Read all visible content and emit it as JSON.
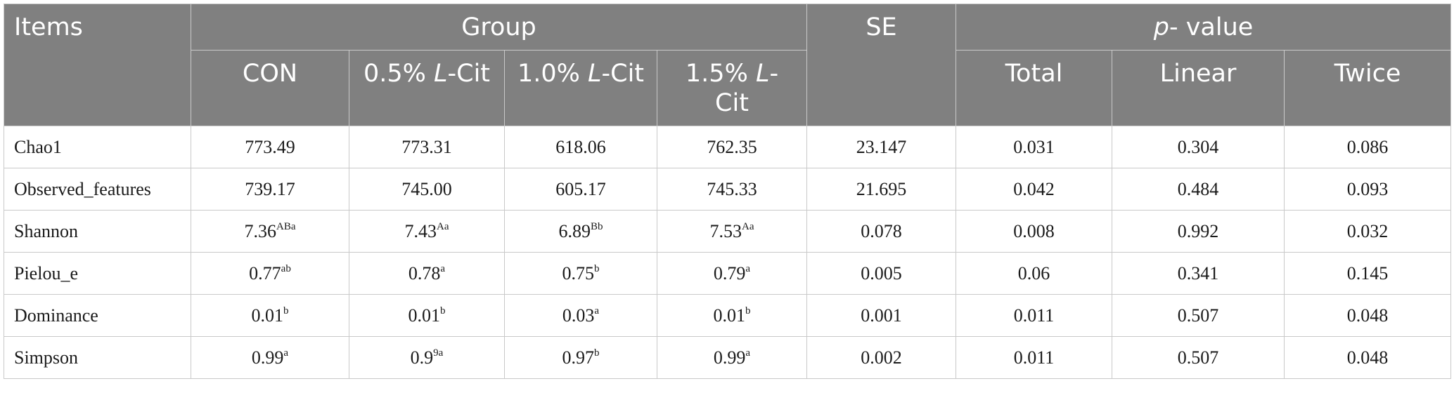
{
  "header": {
    "items": "Items",
    "group": "Group",
    "se": "SE",
    "p_italic": "p",
    "p_rest": "- value",
    "con": "CON",
    "g05_pre": "0.5% ",
    "g10_pre": "1.0% ",
    "g15_pre": "1.5% ",
    "l": "L",
    "cit": "-Cit",
    "total": "Total",
    "linear": "Linear",
    "twice": "Twice"
  },
  "rows": [
    {
      "label": "Chao1",
      "con": "773.49",
      "con_sup": "",
      "g05": "773.31",
      "g05_sup": "",
      "g10": "618.06",
      "g10_sup": "",
      "g15": "762.35",
      "g15_sup": "",
      "se": "23.147",
      "total": "0.031",
      "linear": "0.304",
      "twice": "0.086"
    },
    {
      "label": "Observed_features",
      "con": "739.17",
      "con_sup": "",
      "g05": "745.00",
      "g05_sup": "",
      "g10": "605.17",
      "g10_sup": "",
      "g15": "745.33",
      "g15_sup": "",
      "se": "21.695",
      "total": "0.042",
      "linear": "0.484",
      "twice": "0.093"
    },
    {
      "label": "Shannon",
      "con": "7.36",
      "con_sup": "ABa",
      "g05": "7.43",
      "g05_sup": "Aa",
      "g10": "6.89",
      "g10_sup": "Bb",
      "g15": "7.53",
      "g15_sup": "Aa",
      "se": "0.078",
      "total": "0.008",
      "linear": "0.992",
      "twice": "0.032"
    },
    {
      "label": "Pielou_e",
      "con": "0.77",
      "con_sup": "ab",
      "g05": "0.78",
      "g05_sup": "a",
      "g10": "0.75",
      "g10_sup": "b",
      "g15": "0.79",
      "g15_sup": "a",
      "se": "0.005",
      "total": "0.06",
      "linear": "0.341",
      "twice": "0.145"
    },
    {
      "label": "Dominance",
      "con": "0.01",
      "con_sup": "b",
      "g05": "0.01",
      "g05_sup": "b",
      "g10": "0.03",
      "g10_sup": "a",
      "g15": "0.01",
      "g15_sup": "b",
      "se": "0.001",
      "total": "0.011",
      "linear": "0.507",
      "twice": "0.048"
    },
    {
      "label": "Simpson",
      "con": "0.99",
      "con_sup": "a",
      "g05": "0.9",
      "g05_sup": "9a",
      "g10": "0.97",
      "g10_sup": "b",
      "g15": "0.99",
      "g15_sup": "a",
      "se": "0.002",
      "total": "0.011",
      "linear": "0.507",
      "twice": "0.048"
    }
  ]
}
